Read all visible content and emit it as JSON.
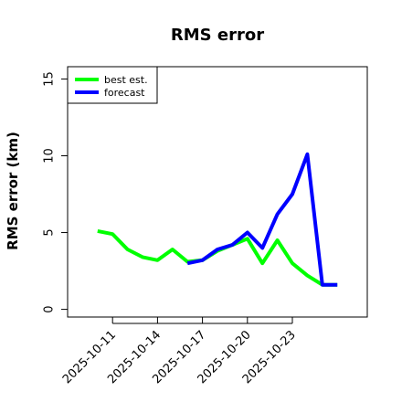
{
  "chart_data": {
    "type": "line",
    "title": "RMS error",
    "xlabel": "",
    "ylabel": "RMS error (km)",
    "x": [
      "2025-10-10",
      "2025-10-11",
      "2025-10-12",
      "2025-10-13",
      "2025-10-14",
      "2025-10-15",
      "2025-10-16",
      "2025-10-17",
      "2025-10-18",
      "2025-10-19",
      "2025-10-20",
      "2025-10-21",
      "2025-10-22",
      "2025-10-23",
      "2025-10-24",
      "2025-10-25",
      "2025-10-26"
    ],
    "xticks": [
      "2025-10-11",
      "2025-10-14",
      "2025-10-17",
      "2025-10-20",
      "2025-10-23"
    ],
    "xlim": [
      "2025-10-08",
      "2025-10-28"
    ],
    "ylim": [
      -0.5,
      15.8
    ],
    "yticks": [
      0,
      5,
      10,
      15
    ],
    "legend_position": "top-left",
    "grid": false,
    "series": [
      {
        "name": "best est.",
        "color": "#00ff00",
        "values": [
          5.1,
          4.9,
          3.9,
          3.4,
          3.2,
          3.9,
          3.1,
          3.2,
          3.8,
          4.2,
          4.6,
          3.0,
          4.5,
          3.0,
          2.2,
          1.6,
          1.6
        ]
      },
      {
        "name": "forecast",
        "color": "#0000ff",
        "values": [
          null,
          null,
          null,
          null,
          null,
          null,
          3.0,
          3.2,
          3.9,
          4.2,
          5.0,
          4.0,
          6.2,
          7.5,
          10.1,
          1.6,
          1.6
        ]
      }
    ]
  }
}
